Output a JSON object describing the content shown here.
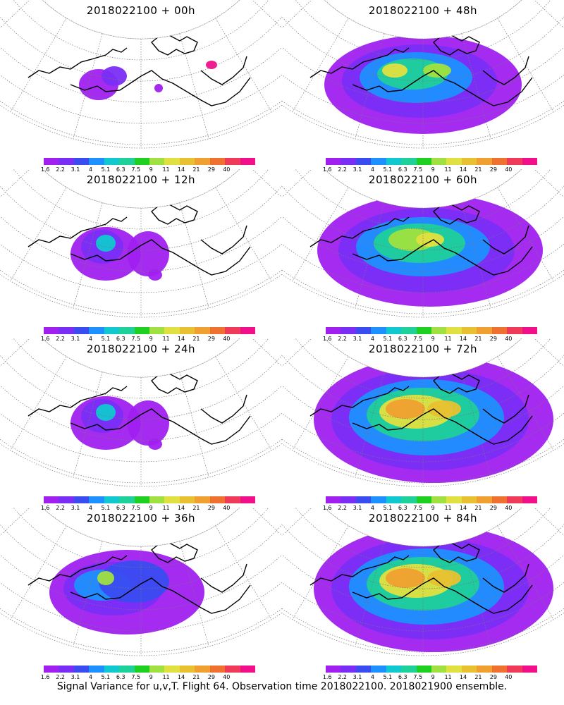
{
  "caption": "Signal Variance for u,v,T. Flight 64. Observation time 2018022100. 2018021900 ensemble.",
  "colorbar": {
    "colors": [
      "#a020f0",
      "#7a2ef5",
      "#3a4cf0",
      "#1e90ff",
      "#10c8d0",
      "#20d09a",
      "#20d020",
      "#a0e040",
      "#e0e040",
      "#e8c030",
      "#f0a030",
      "#f07030",
      "#f03a5a",
      "#f0108a"
    ],
    "labels": [
      "1.6",
      "2.2",
      "3.1",
      "4",
      "5.1",
      "6.3",
      "7.5",
      "9",
      "11",
      "14",
      "21",
      "29",
      "40"
    ]
  },
  "panels": [
    {
      "id": "h00",
      "title": "2018022100 + 00h",
      "intensity": 0
    },
    {
      "id": "h48",
      "title": "2018022100 + 48h",
      "intensity": 3
    },
    {
      "id": "h12",
      "title": "2018022100 + 12h",
      "intensity": 1
    },
    {
      "id": "h60",
      "title": "2018022100 + 60h",
      "intensity": 4
    },
    {
      "id": "h24",
      "title": "2018022100 + 24h",
      "intensity": 1
    },
    {
      "id": "h72",
      "title": "2018022100 + 72h",
      "intensity": 5
    },
    {
      "id": "h36",
      "title": "2018022100 + 36h",
      "intensity": 2
    },
    {
      "id": "h84",
      "title": "2018022100 + 84h",
      "intensity": 5
    }
  ]
}
